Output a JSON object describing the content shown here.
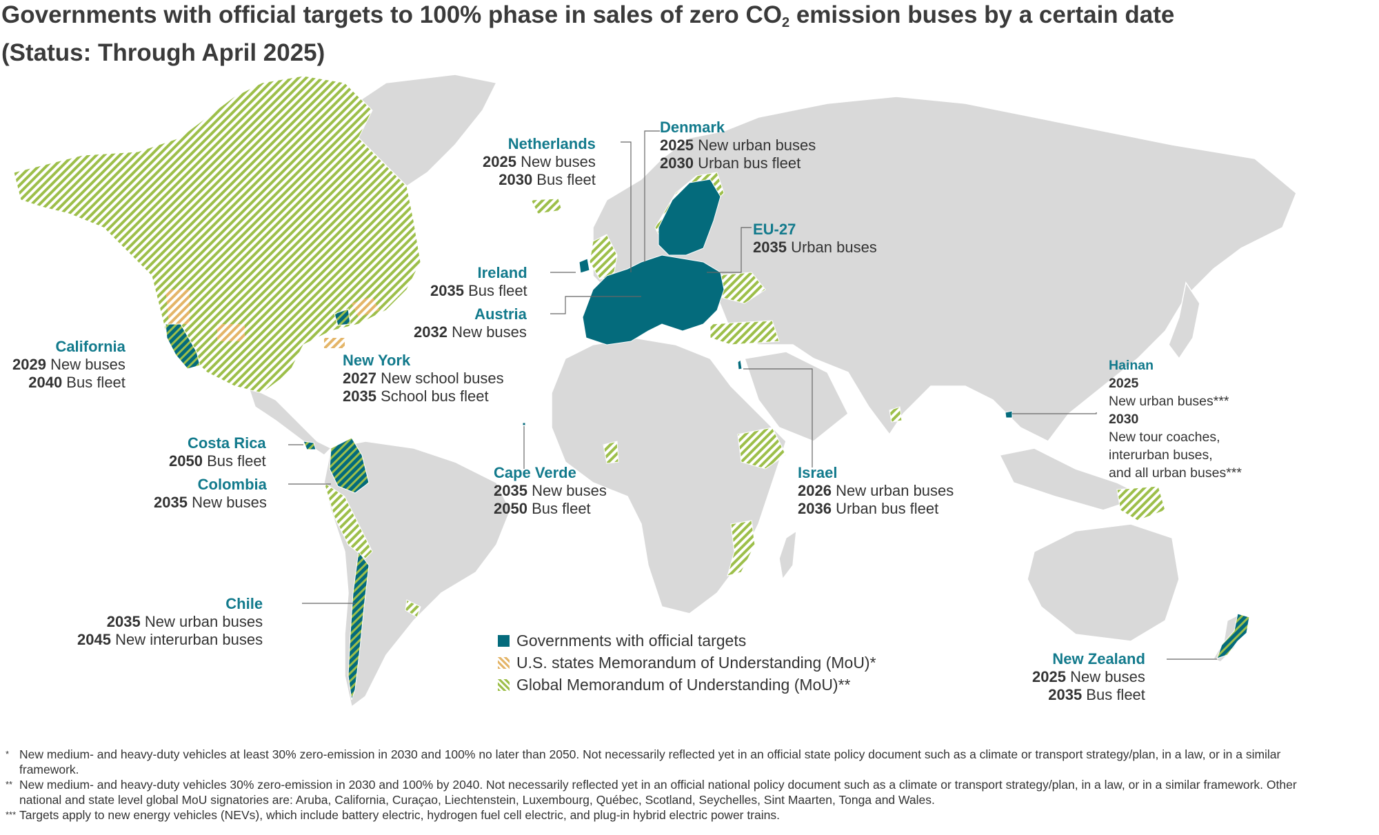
{
  "title": {
    "part1": "Governments with official targets to 100% phase in sales of zero CO",
    "sub": "2",
    "part2": " emission buses by a certain date (Status: Through April 2025)"
  },
  "colors": {
    "official": "#046b7c",
    "us_mou": "#e4b568",
    "global_mou": "#9dbf4a",
    "land": "#d9d9d9",
    "label_name": "#127a8c"
  },
  "labels": {
    "netherlands": {
      "name": "Netherlands",
      "l1_year": "2025",
      "l1_text": " New buses",
      "l2_year": "2030",
      "l2_text": " Bus fleet"
    },
    "denmark": {
      "name": "Denmark",
      "l1_year": "2025",
      "l1_text": " New urban buses",
      "l2_year": "2030",
      "l2_text": " Urban bus fleet"
    },
    "eu27": {
      "name": "EU-27",
      "l1_year": "2035",
      "l1_text": " Urban buses"
    },
    "ireland": {
      "name": "Ireland",
      "l1_year": "2035",
      "l1_text": " Bus fleet"
    },
    "austria": {
      "name": "Austria",
      "l1_year": "2032",
      "l1_text": " New buses"
    },
    "california": {
      "name": "California",
      "l1_year": "2029",
      "l1_text": " New buses",
      "l2_year": "2040",
      "l2_text": " Bus fleet"
    },
    "newyork": {
      "name": "New York",
      "l1_year": "2027",
      "l1_text": " New school buses",
      "l2_year": "2035",
      "l2_text": " School bus fleet"
    },
    "costarica": {
      "name": "Costa Rica",
      "l1_year": "2050",
      "l1_text": " Bus fleet"
    },
    "colombia": {
      "name": "Colombia",
      "l1_year": "2035",
      "l1_text": " New buses"
    },
    "capeverde": {
      "name": "Cape Verde",
      "l1_year": "2035",
      "l1_text": " New buses",
      "l2_year": "2050",
      "l2_text": " Bus fleet"
    },
    "israel": {
      "name": "Israel",
      "l1_year": "2026",
      "l1_text": " New urban buses",
      "l2_year": "2036",
      "l2_text": " Urban bus fleet"
    },
    "hainan": {
      "name": "Hainan",
      "l1_year": "2025",
      "l1_text": "New urban buses***",
      "l2_year": "2030",
      "l2_text_a": "New tour coaches,",
      "l2_text_b": "interurban buses,",
      "l2_text_c": "and all urban buses***"
    },
    "chile": {
      "name": "Chile",
      "l1_year": "2035",
      "l1_text": " New urban buses",
      "l2_year": "2045",
      "l2_text": " New interurban buses"
    },
    "newzealand": {
      "name": "New Zealand",
      "l1_year": "2025",
      "l1_text": " New buses",
      "l2_year": "2035",
      "l2_text": " Bus fleet"
    }
  },
  "legend": {
    "official": "Governments with official targets",
    "us_mou": "U.S. states Memorandum of Understanding (MoU)*",
    "global_mou": "Global Memorandum of Understanding (MoU)**"
  },
  "footnotes": {
    "f1_mark": "*",
    "f1": "New medium- and heavy-duty vehicles at least 30% zero-emission in 2030 and 100% no later than 2050. Not necessarily reflected yet in an official state policy document such as a climate or transport strategy/plan, in a law, or in a similar framework.",
    "f2_mark": "**",
    "f2": "New medium- and heavy-duty vehicles 30% zero-emission in 2030 and 100% by 2040. Not necessarily reflected yet in an official national policy document such as a climate or transport strategy/plan, in a law, or in a similar framework. Other national and state level global MoU signatories are: Aruba, California, Curaçao, Liechtenstein, Luxembourg, Québec, Scotland, Seychelles, Sint Maarten, Tonga and Wales.",
    "f3_mark": "***",
    "f3": "Targets apply to new energy vehicles (NEVs), which include battery electric, hydrogen fuel cell electric, and plug-in hybrid electric power trains."
  }
}
